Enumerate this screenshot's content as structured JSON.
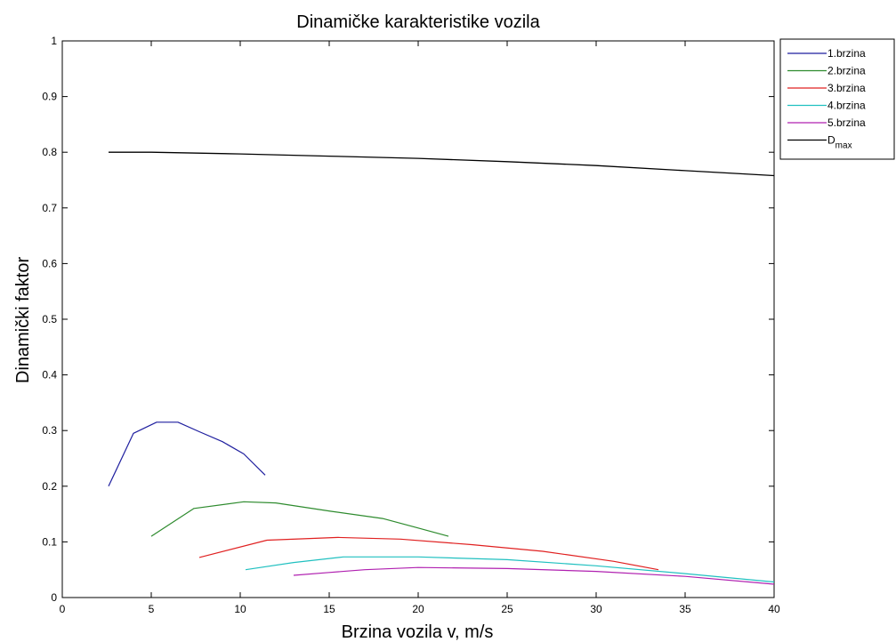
{
  "chart_data": {
    "type": "line",
    "title": "Dinamičke karakteristike vozila",
    "xlabel": "Brzina vozila v, m/s",
    "ylabel": "Dinamički faktor",
    "xlim": [
      0,
      40
    ],
    "ylim": [
      0,
      1
    ],
    "xticks": [
      0,
      5,
      10,
      15,
      20,
      25,
      30,
      35,
      40
    ],
    "yticks": [
      0,
      0.1,
      0.2,
      0.3,
      0.4,
      0.5,
      0.6,
      0.7,
      0.8,
      0.9,
      1
    ],
    "grid": true,
    "legend_position": "outside-top-right",
    "series": [
      {
        "name": "1.brzina",
        "color": "#1f1f9f",
        "x": [
          2.6,
          4.0,
          5.3,
          6.5,
          7.7,
          9.0,
          10.2,
          11.4
        ],
        "y": [
          0.2,
          0.295,
          0.315,
          0.315,
          0.298,
          0.28,
          0.258,
          0.22
        ]
      },
      {
        "name": "2.brzina",
        "color": "#2e8b2e",
        "x": [
          5.0,
          7.4,
          10.2,
          12.0,
          15.1,
          18.0,
          20.0,
          21.7
        ],
        "y": [
          0.11,
          0.16,
          0.172,
          0.17,
          0.155,
          0.142,
          0.125,
          0.11
        ]
      },
      {
        "name": "3.brzina",
        "color": "#e02020",
        "x": [
          7.7,
          11.5,
          15.5,
          19.0,
          23.0,
          27.0,
          31.0,
          33.5
        ],
        "y": [
          0.072,
          0.103,
          0.108,
          0.105,
          0.095,
          0.083,
          0.065,
          0.05
        ]
      },
      {
        "name": "4.brzina",
        "color": "#20c0c0",
        "x": [
          10.3,
          13.0,
          15.8,
          20.0,
          25.0,
          30.0,
          35.0,
          40.0
        ],
        "y": [
          0.05,
          0.063,
          0.073,
          0.073,
          0.068,
          0.057,
          0.043,
          0.028
        ]
      },
      {
        "name": "5.brzina",
        "color": "#b020b0",
        "x": [
          13.0,
          15.0,
          17.0,
          20.0,
          25.0,
          30.0,
          35.0,
          40.0
        ],
        "y": [
          0.04,
          0.045,
          0.05,
          0.054,
          0.052,
          0.047,
          0.038,
          0.024
        ]
      },
      {
        "name": "D",
        "name_subscript": "max",
        "color": "#000000",
        "x": [
          2.6,
          5.0,
          10.0,
          15.0,
          20.0,
          25.0,
          30.0,
          35.0,
          40.0
        ],
        "y": [
          0.8,
          0.8,
          0.797,
          0.793,
          0.789,
          0.783,
          0.776,
          0.767,
          0.758
        ]
      }
    ]
  }
}
